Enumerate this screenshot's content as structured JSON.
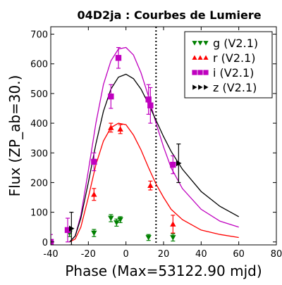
{
  "chart_data": {
    "type": "scatter",
    "title": "04D2ja : Courbes de Lumiere",
    "xlabel": "Phase (Max=53122.90 mjd)",
    "ylabel": "Flux (ZP_ab=30.)",
    "xlim": [
      -40,
      80
    ],
    "ylim": [
      -10,
      725
    ],
    "xticks": [
      "-40",
      "-20",
      "0",
      "20",
      "40",
      "60",
      "80"
    ],
    "yticks": [
      "0",
      "100",
      "200",
      "300",
      "400",
      "500",
      "600",
      "700"
    ],
    "xtick_values": [
      -40,
      -20,
      0,
      20,
      40,
      60,
      80
    ],
    "ytick_values": [
      0,
      100,
      200,
      300,
      400,
      500,
      600,
      700
    ],
    "grid": false,
    "legend_position": "top-right",
    "vertical_line_x": 16,
    "series": [
      {
        "name": "g (V2.1)",
        "color": "#008000",
        "marker": "triangle-down",
        "points": [
          {
            "x": -30,
            "y": 30,
            "err": 12
          },
          {
            "x": -17,
            "y": 30,
            "err": 12
          },
          {
            "x": -8,
            "y": 80,
            "err": 12
          },
          {
            "x": -5,
            "y": 65,
            "err": 12
          },
          {
            "x": -3,
            "y": 75,
            "err": 10
          },
          {
            "x": 12,
            "y": 15,
            "err": 10
          },
          {
            "x": 25,
            "y": 15,
            "err": 12
          }
        ],
        "curve": []
      },
      {
        "name": "r (V2.1)",
        "color": "#ff0000",
        "marker": "triangle-up",
        "points": [
          {
            "x": -17,
            "y": 160,
            "err": 20
          },
          {
            "x": -8,
            "y": 385,
            "err": 15
          },
          {
            "x": -3,
            "y": 380,
            "err": 15
          },
          {
            "x": 13,
            "y": 190,
            "err": 15
          },
          {
            "x": 25,
            "y": 60,
            "err": 30
          }
        ],
        "curve": [
          [
            -30,
            0
          ],
          [
            -27,
            10
          ],
          [
            -24,
            50
          ],
          [
            -20,
            150
          ],
          [
            -16,
            260
          ],
          [
            -12,
            340
          ],
          [
            -8,
            385
          ],
          [
            -4,
            400
          ],
          [
            0,
            395
          ],
          [
            4,
            360
          ],
          [
            8,
            310
          ],
          [
            12,
            250
          ],
          [
            16,
            195
          ],
          [
            20,
            150
          ],
          [
            24,
            110
          ],
          [
            30,
            75
          ],
          [
            40,
            40
          ],
          [
            50,
            25
          ],
          [
            60,
            15
          ]
        ]
      },
      {
        "name": "i (V2.1)",
        "color": "#bf00bf",
        "marker": "square",
        "points": [
          {
            "x": -40,
            "y": 0,
            "err": 25
          },
          {
            "x": -31,
            "y": 40,
            "err": 40
          },
          {
            "x": -17,
            "y": 270,
            "err": 30
          },
          {
            "x": -8,
            "y": 490,
            "err": 40
          },
          {
            "x": -4,
            "y": 620,
            "err": 35
          },
          {
            "x": 12,
            "y": 480,
            "err": 50
          },
          {
            "x": 13,
            "y": 460,
            "err": 60
          },
          {
            "x": 25,
            "y": 260,
            "err": 30
          }
        ],
        "curve": [
          [
            -30,
            0
          ],
          [
            -27,
            20
          ],
          [
            -24,
            90
          ],
          [
            -20,
            240
          ],
          [
            -16,
            400
          ],
          [
            -12,
            530
          ],
          [
            -8,
            610
          ],
          [
            -4,
            650
          ],
          [
            0,
            655
          ],
          [
            4,
            630
          ],
          [
            8,
            570
          ],
          [
            12,
            490
          ],
          [
            16,
            400
          ],
          [
            20,
            320
          ],
          [
            24,
            250
          ],
          [
            30,
            180
          ],
          [
            40,
            110
          ],
          [
            50,
            70
          ],
          [
            60,
            50
          ]
        ]
      },
      {
        "name": "z (V2.1)",
        "color": "#000000",
        "marker": "triangle-right",
        "points": [
          {
            "x": -29,
            "y": 45,
            "err": 55
          },
          {
            "x": 28,
            "y": 265,
            "err": 65
          }
        ],
        "curve": [
          [
            -30,
            0
          ],
          [
            -27,
            20
          ],
          [
            -24,
            80
          ],
          [
            -20,
            200
          ],
          [
            -16,
            330
          ],
          [
            -12,
            440
          ],
          [
            -8,
            515
          ],
          [
            -4,
            555
          ],
          [
            0,
            565
          ],
          [
            4,
            550
          ],
          [
            8,
            515
          ],
          [
            12,
            465
          ],
          [
            16,
            410
          ],
          [
            20,
            355
          ],
          [
            24,
            305
          ],
          [
            30,
            245
          ],
          [
            40,
            170
          ],
          [
            50,
            120
          ],
          [
            60,
            85
          ]
        ]
      }
    ]
  }
}
